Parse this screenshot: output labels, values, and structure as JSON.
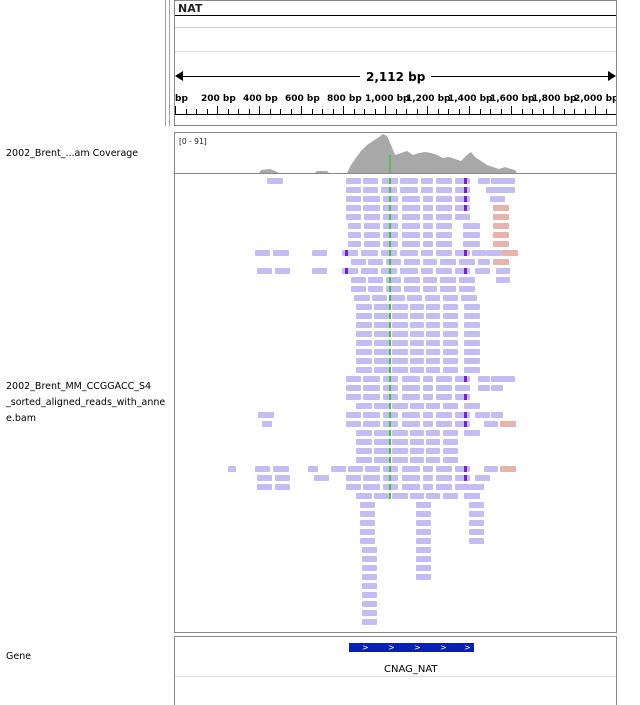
{
  "header": {
    "locus_name": "NAT",
    "span_label": "2,112 bp",
    "ruler_ticks": [
      "bp",
      "200 bp",
      "400 bp",
      "600 bp",
      "800 bp",
      "1,000 bp",
      "1,200 bp",
      "1,400 bp",
      "1,600 bp",
      "1,800 bp",
      "2,000 bp"
    ]
  },
  "tracks": {
    "coverage": {
      "label": "2002_Brent_...am Coverage",
      "range": "[0 - 91]",
      "fill_color": "#a8a8a8",
      "match_color": "#5fb85f"
    },
    "alignment": {
      "label_lines": [
        "2002_Brent_MM_CCGGACC_S4",
        "_sorted_aligned_reads_with_anne",
        "e.bam"
      ],
      "read_color": "#c3bdf3",
      "clipped_read_color": "#e8b3ad",
      "insertion_color": "#7b1fd6",
      "mismatch_color": "#3ec43e"
    },
    "gene": {
      "label": "Gene",
      "feature_name": "CNAG_NAT",
      "feature_color": "#0a1fb5",
      "strand_arrows": [
        ">",
        ">",
        ">",
        ">",
        ">"
      ]
    }
  }
}
